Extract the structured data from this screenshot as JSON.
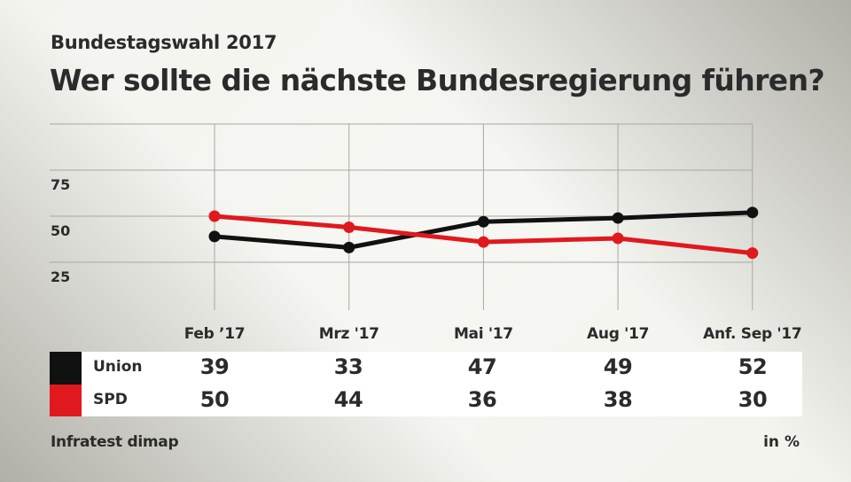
{
  "header": {
    "subtitle": "Bundestagswahl 2017",
    "title": "Wer sollte die nächste Bundesregierung führen?"
  },
  "chart_data": {
    "type": "line",
    "title": "Wer sollte die nächste Bundesregierung führen?",
    "subtitle": "Bundestagswahl 2017",
    "categories": [
      "Feb ’17",
      "Mrz '17",
      "Mai '17",
      "Aug '17",
      "Anf. Sep '17"
    ],
    "series": [
      {
        "name": "Union",
        "color": "#111111",
        "values": [
          39,
          33,
          47,
          49,
          52
        ]
      },
      {
        "name": "SPD",
        "color": "#e0191e",
        "values": [
          50,
          44,
          36,
          38,
          30
        ]
      }
    ],
    "yticks": [
      25,
      50,
      75
    ],
    "ylim": [
      0,
      100
    ],
    "xlabel": "",
    "ylabel": "",
    "grid": true,
    "legend": "bottom-table",
    "unit": "in %",
    "source": "Infratest dimap"
  },
  "footer": {
    "source": "Infratest dimap",
    "unit": "in %"
  }
}
